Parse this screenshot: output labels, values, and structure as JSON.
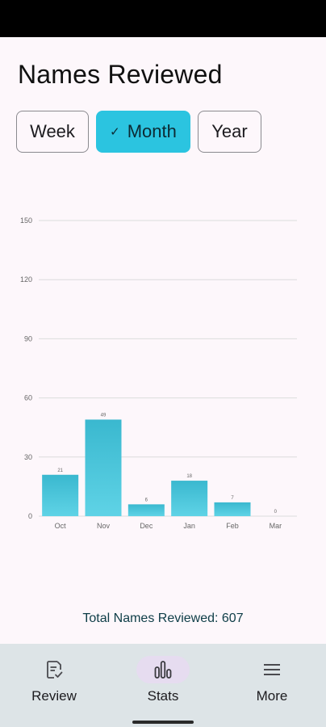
{
  "page": {
    "title": "Names Reviewed"
  },
  "period_selector": {
    "options": [
      {
        "label": "Week",
        "selected": false
      },
      {
        "label": "Month",
        "selected": true
      },
      {
        "label": "Year",
        "selected": false
      }
    ],
    "check_glyph": "✓"
  },
  "chart_data": {
    "type": "bar",
    "categories": [
      "Oct",
      "Nov",
      "Dec",
      "Jan",
      "Feb",
      "Mar"
    ],
    "values": [
      21,
      49,
      6,
      18,
      7,
      0
    ],
    "value_labels": [
      "21",
      "49",
      "6",
      "18",
      "7",
      "0"
    ],
    "y_ticks": [
      "0",
      "30",
      "60",
      "90",
      "120",
      "150"
    ],
    "ylim": [
      0,
      150
    ],
    "grid": true,
    "title": "",
    "xlabel": "",
    "ylabel": "",
    "colors": {
      "bar_top": "#3ab8cf",
      "bar_bottom": "#5fd3e6",
      "grid": "#dcdcdc",
      "tick_text": "#666666"
    }
  },
  "summary": {
    "total_text": "Total Names Reviewed: 607"
  },
  "bottom_nav": {
    "items": [
      {
        "label": "Review",
        "icon": "review-icon",
        "active": false
      },
      {
        "label": "Stats",
        "icon": "stats-icon",
        "active": true
      },
      {
        "label": "More",
        "icon": "menu-icon",
        "active": false
      }
    ]
  },
  "colors": {
    "accent": "#2bc4e0",
    "nav_bg": "#dde4e7",
    "active_indicator": "#e6dcf0",
    "background": "#fdf7fb"
  }
}
